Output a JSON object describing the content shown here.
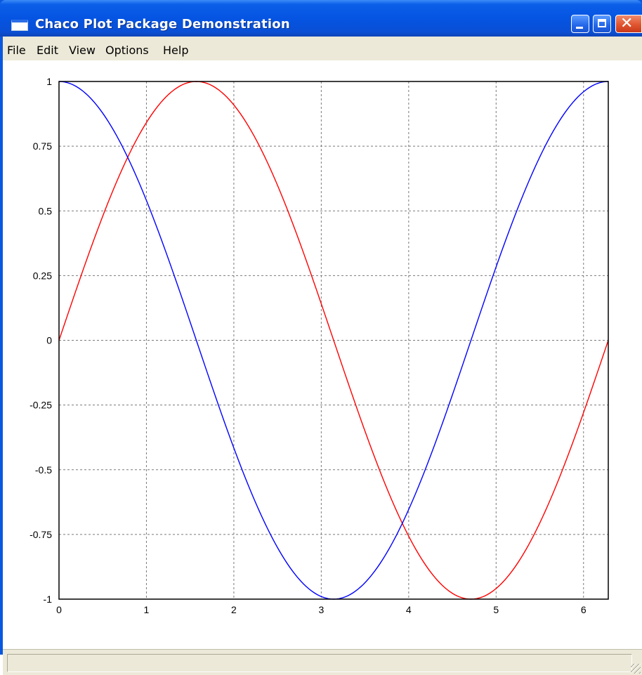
{
  "window": {
    "title": "Chaco Plot Package Demonstration",
    "controls": [
      "minimize",
      "maximize",
      "close"
    ]
  },
  "menu": {
    "items": [
      "File",
      "Edit",
      "View",
      "Options",
      "Help"
    ]
  },
  "icons": {
    "app": "window-icon",
    "minimize": "minimize-icon",
    "maximize": "maximize-icon",
    "close": "close-icon",
    "resize": "resize-grip-icon"
  },
  "chart_data": {
    "type": "line",
    "title": "",
    "xlabel": "",
    "ylabel": "",
    "xlim": [
      0,
      6.2832
    ],
    "ylim": [
      -1,
      1
    ],
    "grid": true,
    "x_ticks": [
      "0",
      "1",
      "2",
      "3",
      "4",
      "5",
      "6"
    ],
    "y_ticks": [
      "-1",
      "-0.75",
      "-0.5",
      "-0.25",
      "0",
      "0.25",
      "0.5",
      "0.75",
      "1"
    ],
    "series": [
      {
        "color": "#ff0000",
        "function": "sin",
        "x": [
          0,
          0.5,
          1,
          1.5708,
          2,
          2.5,
          3,
          3.1416,
          3.5,
          4,
          4.5,
          4.7124,
          5,
          5.5,
          6,
          6.2832
        ],
        "y": [
          0,
          0.479,
          0.841,
          1,
          0.909,
          0.598,
          0.141,
          0,
          -0.351,
          -0.757,
          -0.978,
          -1,
          -0.959,
          -0.706,
          -0.279,
          0
        ]
      },
      {
        "color": "#0000ff",
        "function": "cos",
        "x": [
          0,
          0.5,
          1,
          1.5708,
          2,
          2.5,
          3,
          3.1416,
          3.5,
          4,
          4.5,
          4.7124,
          5,
          5.5,
          6,
          6.2832
        ],
        "y": [
          1,
          0.878,
          0.54,
          0,
          -0.416,
          -0.801,
          -0.99,
          -1,
          -0.936,
          -0.654,
          -0.211,
          0,
          0.284,
          0.709,
          0.96,
          1
        ]
      }
    ]
  }
}
